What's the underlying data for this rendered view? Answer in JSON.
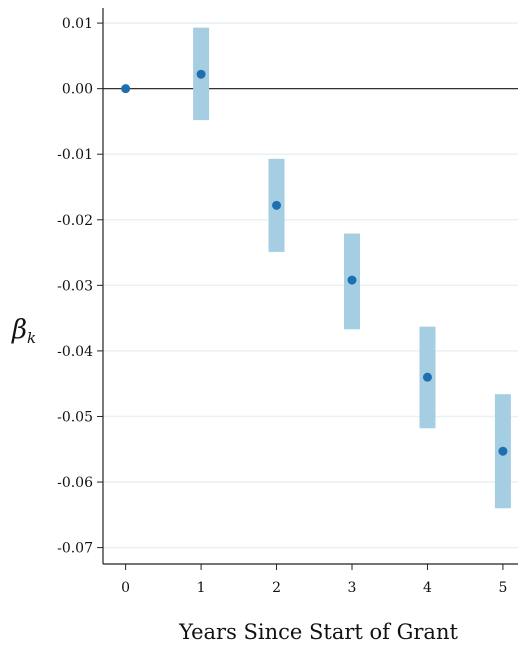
{
  "chart_data": {
    "type": "scatter",
    "title": "",
    "xlabel": "Years Since Start of Grant",
    "ylabel": "β",
    "ylabel_subscript": "k",
    "x": [
      0,
      1,
      2,
      3,
      4,
      5
    ],
    "x_tick_labels": [
      "0",
      "1",
      "2",
      "3",
      "4",
      "5"
    ],
    "y_tick_labels": [
      "0.01",
      "0.00",
      "-0.01",
      "-0.02",
      "-0.03",
      "-0.04",
      "-0.05",
      "-0.06",
      "-0.07"
    ],
    "y_ticks": [
      0.01,
      0.0,
      -0.01,
      -0.02,
      -0.03,
      -0.04,
      -0.05,
      -0.06,
      -0.07
    ],
    "xlim": [
      -0.3,
      5.2
    ],
    "ylim": [
      -0.0725,
      0.0123
    ],
    "grid": "horizontal",
    "reference_line_y": 0,
    "series": [
      {
        "values": [
          0.0,
          0.0022,
          -0.0178,
          -0.0292,
          -0.044,
          -0.0553
        ],
        "ci_low": [
          0.0,
          -0.0048,
          -0.0249,
          -0.0367,
          -0.0518,
          -0.064
        ],
        "ci_high": [
          0.0,
          0.0093,
          -0.0107,
          -0.0221,
          -0.0363,
          -0.0466
        ]
      }
    ],
    "colors": {
      "point": "#1f6fb0",
      "ci_band": "#a6cee3",
      "grid": "#e8f1f4",
      "axis": "#222222",
      "reference_line": "#333333"
    }
  }
}
